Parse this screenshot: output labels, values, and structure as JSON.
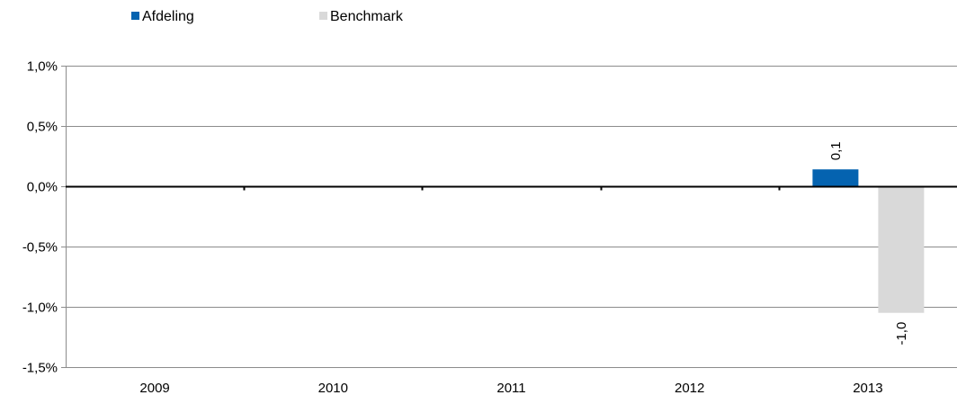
{
  "chart_data": {
    "type": "bar",
    "categories": [
      "2009",
      "2010",
      "2011",
      "2012",
      "2013"
    ],
    "series": [
      {
        "name": "Afdeling",
        "color": "#0563b0",
        "values": [
          null,
          null,
          null,
          null,
          0.14
        ],
        "labels": [
          null,
          null,
          null,
          null,
          "0,1"
        ]
      },
      {
        "name": "Benchmark",
        "color": "#d9d9d9",
        "values": [
          null,
          null,
          null,
          null,
          -1.05
        ],
        "labels": [
          null,
          null,
          null,
          null,
          "-1,0"
        ]
      }
    ],
    "y_ticks": [
      {
        "value": 1.0,
        "label": "1,0%"
      },
      {
        "value": 0.5,
        "label": "0,5%"
      },
      {
        "value": 0.0,
        "label": "0,0%"
      },
      {
        "value": -0.5,
        "label": "-0,5%"
      },
      {
        "value": -1.0,
        "label": "-1,0%"
      },
      {
        "value": -1.5,
        "label": "-1,5%"
      }
    ],
    "ylim": [
      -1.5,
      1.0
    ],
    "grid": true,
    "legend": "top-left",
    "title": "",
    "xlabel": "",
    "ylabel": ""
  }
}
